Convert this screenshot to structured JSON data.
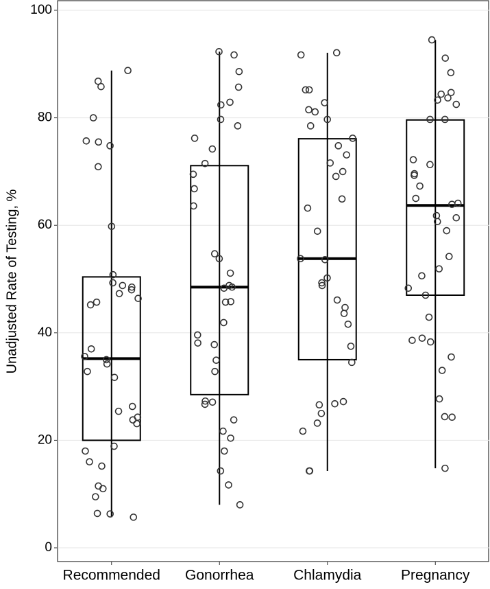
{
  "chart_data": {
    "type": "box",
    "y_label": "Unadjusted Rate of Testing, %",
    "categories": [
      "Recommended",
      "Gonorrhea",
      "Chlamydia",
      "Pregnancy"
    ],
    "boxes": [
      {
        "min": 5.7,
        "q1": 20.0,
        "median": 35.2,
        "q3": 50.4,
        "max": 88.8
      },
      {
        "min": 8.0,
        "q1": 28.5,
        "median": 48.5,
        "q3": 71.1,
        "max": 92.3
      },
      {
        "min": 14.3,
        "q1": 35.0,
        "median": 53.8,
        "q3": 76.1,
        "max": 92.1
      },
      {
        "min": 14.8,
        "q1": 47.0,
        "median": 63.7,
        "q3": 79.6,
        "max": 94.5
      }
    ],
    "points": [
      [
        88.8,
        86.8,
        85.8,
        80,
        75.7,
        75.5,
        74.8,
        70.9,
        59.8,
        50.8,
        49.3,
        48.8,
        48.5,
        48,
        47.3,
        46.4,
        45.7,
        45.2,
        37,
        35.6,
        35,
        34.2,
        32.8,
        31.7,
        26.3,
        25.4,
        24.3,
        23.8,
        23.1,
        18.9,
        18,
        16,
        15.2,
        11.5,
        11,
        9.5,
        6.4,
        6.3,
        5.7
      ],
      [
        92.3,
        91.7,
        88.6,
        85.7,
        82.9,
        82.4,
        79.7,
        78.5,
        76.2,
        74.2,
        71.5,
        69.5,
        66.8,
        63.6,
        54.7,
        53.8,
        51.1,
        48.8,
        48.5,
        48.3,
        45.8,
        45.7,
        41.9,
        39.6,
        38.1,
        37.8,
        34.9,
        32.8,
        27.3,
        27.1,
        26.7,
        23.8,
        21.7,
        20.4,
        18,
        14.3,
        11.7,
        8
      ],
      [
        92.1,
        91.7,
        85.2,
        85.2,
        82.8,
        81.5,
        81.1,
        79.7,
        78.5,
        76.2,
        74.8,
        73.1,
        71.6,
        70,
        69.1,
        64.9,
        63.2,
        58.9,
        53.8,
        53.6,
        50.2,
        49.3,
        48.8,
        46.1,
        44.7,
        43.6,
        41.6,
        37.5,
        34.5,
        27.2,
        26.8,
        26.6,
        25,
        23.2,
        21.7,
        14.3,
        14.3
      ],
      [
        94.5,
        91.1,
        88.4,
        84.7,
        84.4,
        83.7,
        83.3,
        82.5,
        79.7,
        79.7,
        72.2,
        71.3,
        69.6,
        69.3,
        67.3,
        65,
        63.9,
        64.1,
        61.8,
        61.4,
        60.7,
        59,
        54.2,
        51.9,
        50.6,
        48.3,
        47,
        42.9,
        39,
        38.6,
        38.3,
        35.5,
        33,
        27.7,
        24.4,
        24.3,
        14.8
      ]
    ],
    "ylim": [
      0,
      100
    ],
    "yticks": [
      0,
      20,
      40,
      60,
      80,
      100
    ],
    "grid": true,
    "box_color": "#000000",
    "point_color": "#333333"
  }
}
